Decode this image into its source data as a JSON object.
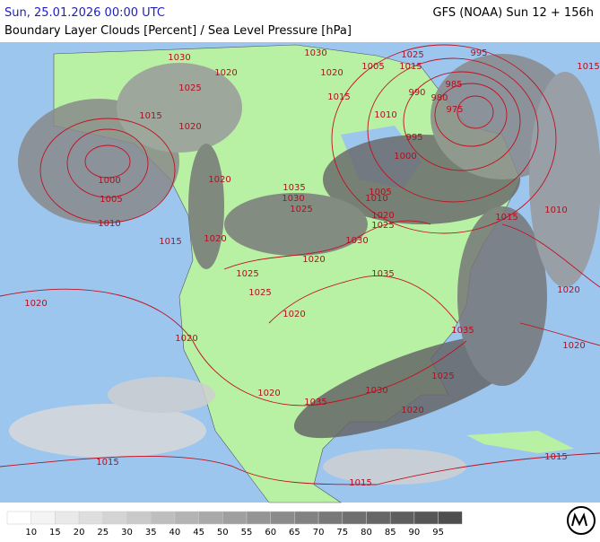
{
  "header": {
    "date": "Sun, 25.01.2026 00:00 UTC",
    "model": "GFS (NOAA) Sun 12 + 156h",
    "title": "Boundary Layer Clouds [Percent] / Sea Level Pressure [hPa]"
  },
  "isobar_labels": [
    "1030",
    "1020",
    "1025",
    "1015",
    "1020",
    "1000",
    "1005",
    "1010",
    "1020",
    "1015",
    "1020",
    "1035",
    "1030",
    "1025",
    "1020",
    "1025",
    "1025",
    "1020",
    "1020",
    "1030",
    "1035",
    "1035",
    "1025",
    "1030",
    "1020",
    "1035",
    "1020",
    "1015",
    "1015",
    "1015",
    "1020",
    "1020",
    "1020",
    "1015",
    "1010",
    "1015",
    "995",
    "985",
    "975",
    "980",
    "990",
    "995",
    "1000",
    "1005",
    "1010",
    "1020",
    "1025",
    "1005",
    "1015",
    "1025",
    "1010",
    "1015",
    "1030",
    "1020"
  ],
  "legend": {
    "labels": [
      10,
      15,
      20,
      25,
      30,
      35,
      40,
      45,
      50,
      55,
      60,
      65,
      70,
      75,
      80,
      85,
      90,
      95
    ],
    "colors": [
      "#ffffff",
      "#f4f4f4",
      "#e9e9e9",
      "#dedede",
      "#d4d4d4",
      "#c9c9c9",
      "#bebebe",
      "#b4b4b4",
      "#a9a9a9",
      "#9f9f9f",
      "#959595",
      "#8b8b8b",
      "#828282",
      "#787878",
      "#6f6f6f",
      "#666666",
      "#5e5e5e",
      "#565656",
      "#4e4e4e"
    ]
  }
}
